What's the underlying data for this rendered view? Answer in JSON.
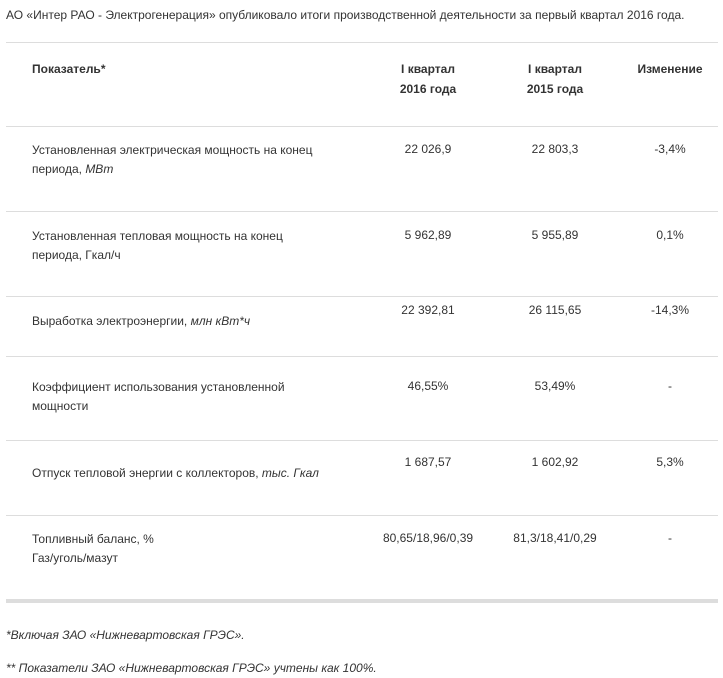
{
  "intro": "АО «Интер РАО - Электрогенерация» опубликовало итоги производственной деятельности за первый квартал 2016 года.",
  "table": {
    "header": {
      "indicator": "Показатель*",
      "q2016": [
        "I квартал",
        "2016 года"
      ],
      "q2015": [
        "I квартал",
        "2015 года"
      ],
      "change": "Изменение"
    },
    "rows": [
      {
        "label": "Установленная электрическая мощность на конец периода, ",
        "unit": "МВт",
        "values": [
          "22 026,9",
          "22 803,3",
          "-3,4%"
        ]
      },
      {
        "label": "Установленная тепловая мощность на конец периода, Гкал/ч",
        "values": [
          "5 962,89",
          "5 955,89",
          "0,1%"
        ]
      },
      {
        "label": "Выработка электроэнергии, ",
        "unit": "млн кВт*ч",
        "values": [
          "22 392,81",
          "26 115,65",
          "-14,3%"
        ]
      },
      {
        "label": "Коэффициент использования установленной мощности",
        "values": [
          "46,55%",
          "53,49%",
          "-"
        ]
      },
      {
        "label": "Отпуск тепловой энергии с коллекторов, ",
        "unit": "тыс. Гкал",
        "values": [
          "1 687,57",
          "1 602,92",
          "5,3%"
        ]
      },
      {
        "label": "Топливный баланс, %",
        "sublabel": "Газ/уголь/мазут",
        "values": [
          "80,65/18,96/0,39",
          "81,3/18,41/0,29",
          "-"
        ]
      }
    ]
  },
  "footnotes": [
    "*Включая ЗАО «Нижневартовская ГРЭС».",
    "** Показатели ЗАО «Нижневартовская ГРЭС» учтены как 100%."
  ]
}
